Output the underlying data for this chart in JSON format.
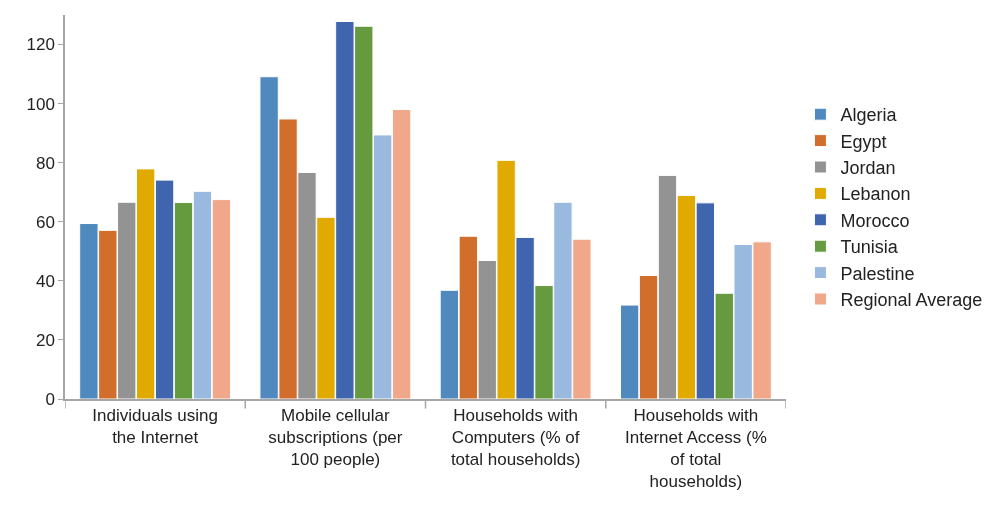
{
  "chart_data": {
    "type": "bar",
    "categories": [
      "Individuals using the Internet",
      "Mobile cellular subscriptions (per 100 people)",
      "Households with Computers (% of total households)",
      "Households with Internet Access (% of total households)"
    ],
    "series": [
      {
        "name": "Algeria",
        "color": "#4f89bd",
        "values": [
          59.4,
          109.1,
          36.8,
          31.8
        ]
      },
      {
        "name": "Egypt",
        "color": "#d26e2b",
        "values": [
          57.1,
          94.8,
          55.1,
          41.8
        ]
      },
      {
        "name": "Jordan",
        "color": "#939393",
        "values": [
          66.6,
          76.7,
          46.9,
          75.7
        ]
      },
      {
        "name": "Lebanon",
        "color": "#e0aa00",
        "values": [
          77.9,
          61.5,
          80.8,
          68.9
        ]
      },
      {
        "name": "Morocco",
        "color": "#3e65ad",
        "values": [
          74.1,
          127.8,
          54.7,
          66.4
        ]
      },
      {
        "name": "Tunisia",
        "color": "#659a3e",
        "values": [
          66.5,
          126.2,
          38.4,
          35.8
        ]
      },
      {
        "name": "Palestine",
        "color": "#99b9df",
        "values": [
          70.3,
          89.4,
          66.6,
          52.3
        ]
      },
      {
        "name": "Regional Average",
        "color": "#f0a78a",
        "values": [
          67.5,
          98.0,
          54.1,
          53.2
        ]
      }
    ],
    "ylim": [
      0,
      130
    ],
    "yticks": [
      0,
      20,
      40,
      60,
      80,
      100,
      120
    ],
    "grid": false,
    "legend": "right"
  }
}
